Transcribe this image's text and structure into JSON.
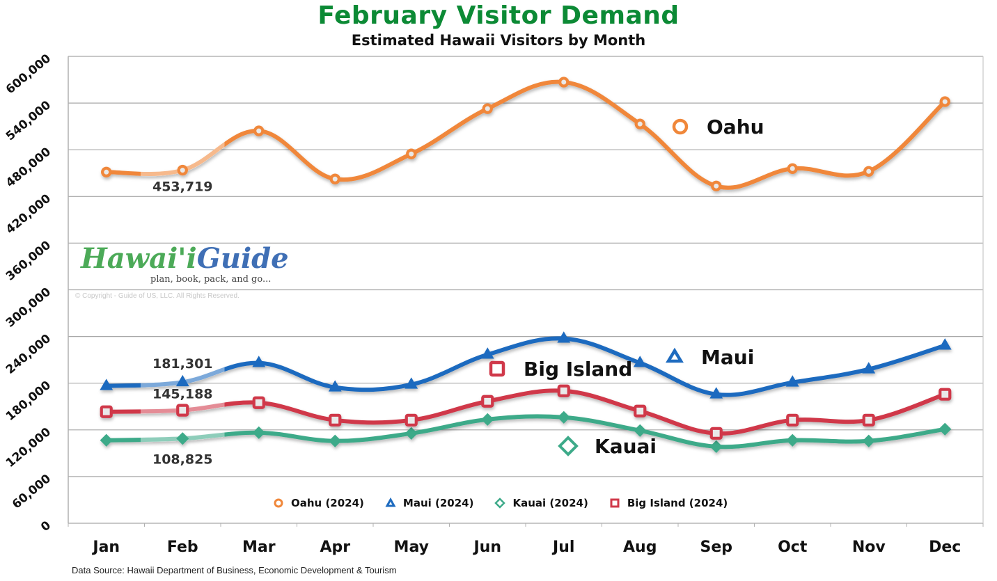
{
  "header": {
    "title": "February Visitor Demand",
    "subtitle": "Estimated Hawaii Visitors by Month"
  },
  "logo": {
    "brand_part1": "Hawai'i",
    "brand_part2": "Guide",
    "tagline": "plan, book, pack, and go...",
    "copyright": "© Copyright - Guide of US, LLC. All Rights Reserved."
  },
  "footer": {
    "source": "Data Source: Hawaii Department of Business, Economic Development & Tourism"
  },
  "colors": {
    "title": "#0c8a35",
    "oahu": "#f0873a",
    "maui": "#1e6bbf",
    "kauai": "#3daa89",
    "big_island": "#d0394a",
    "grid": "#a8a8a8"
  },
  "legend": [
    {
      "label": "Oahu (2024)",
      "marker": "circle",
      "color": "#f0873a"
    },
    {
      "label": "Maui (2024)",
      "marker": "triangle",
      "color": "#1e6bbf"
    },
    {
      "label": "Kauai (2024)",
      "marker": "diamond",
      "color": "#3daa89"
    },
    {
      "label": "Big Island (2024)",
      "marker": "square",
      "color": "#d0394a"
    }
  ],
  "inline_labels": [
    {
      "label": "Oahu",
      "marker": "circle",
      "color": "#f0873a"
    },
    {
      "label": "Maui",
      "marker": "triangle",
      "color": "#1e6bbf"
    },
    {
      "label": "Big Island",
      "marker": "square",
      "color": "#d0394a"
    },
    {
      "label": "Kauai",
      "marker": "diamond",
      "color": "#3daa89"
    }
  ],
  "chart_data": {
    "type": "line",
    "title": "February Visitor Demand",
    "subtitle": "Estimated Hawaii Visitors by Month",
    "xlabel": "",
    "ylabel": "",
    "categories": [
      "Jan",
      "Feb",
      "Mar",
      "Apr",
      "May",
      "Jun",
      "Jul",
      "Aug",
      "Sep",
      "Oct",
      "Nov",
      "Dec"
    ],
    "ylim": [
      0,
      600000
    ],
    "yticks": [
      0,
      60000,
      120000,
      180000,
      240000,
      300000,
      360000,
      420000,
      480000,
      540000,
      600000
    ],
    "ytick_labels": [
      "0",
      "60,000",
      "120,000",
      "180,000",
      "240,000",
      "300,000",
      "360,000",
      "420,000",
      "480,000",
      "540,000",
      "600,000"
    ],
    "grid": true,
    "legend_position": "bottom-inside",
    "highlight_category": "Feb",
    "series": [
      {
        "name": "Oahu (2024)",
        "color": "#f0873a",
        "marker": "circle",
        "values": [
          451300,
          453719,
          504200,
          442400,
          474600,
          532800,
          566900,
          513100,
          433400,
          455800,
          452200,
          541800
        ]
      },
      {
        "name": "Maui (2024)",
        "color": "#1e6bbf",
        "marker": "triangle",
        "values": [
          176400,
          181301,
          206000,
          174600,
          178200,
          216700,
          237300,
          206000,
          165700,
          180900,
          197900,
          228400
        ]
      },
      {
        "name": "Kauai (2024)",
        "color": "#3daa89",
        "marker": "diamond",
        "values": [
          106600,
          108825,
          116400,
          105700,
          115500,
          133400,
          136100,
          119100,
          98500,
          106600,
          105700,
          120900
        ]
      },
      {
        "name": "Big Island (2024)",
        "color": "#d0394a",
        "marker": "square",
        "values": [
          143300,
          145188,
          154900,
          132500,
          132500,
          156700,
          170100,
          144200,
          115500,
          132500,
          132500,
          165700
        ]
      }
    ],
    "annotations": [
      {
        "series": "Oahu (2024)",
        "category": "Feb",
        "text": "453,719"
      },
      {
        "series": "Maui (2024)",
        "category": "Feb",
        "text": "181,301"
      },
      {
        "series": "Big Island (2024)",
        "category": "Feb",
        "text": "145,188"
      },
      {
        "series": "Kauai (2024)",
        "category": "Feb",
        "text": "108,825"
      }
    ]
  }
}
